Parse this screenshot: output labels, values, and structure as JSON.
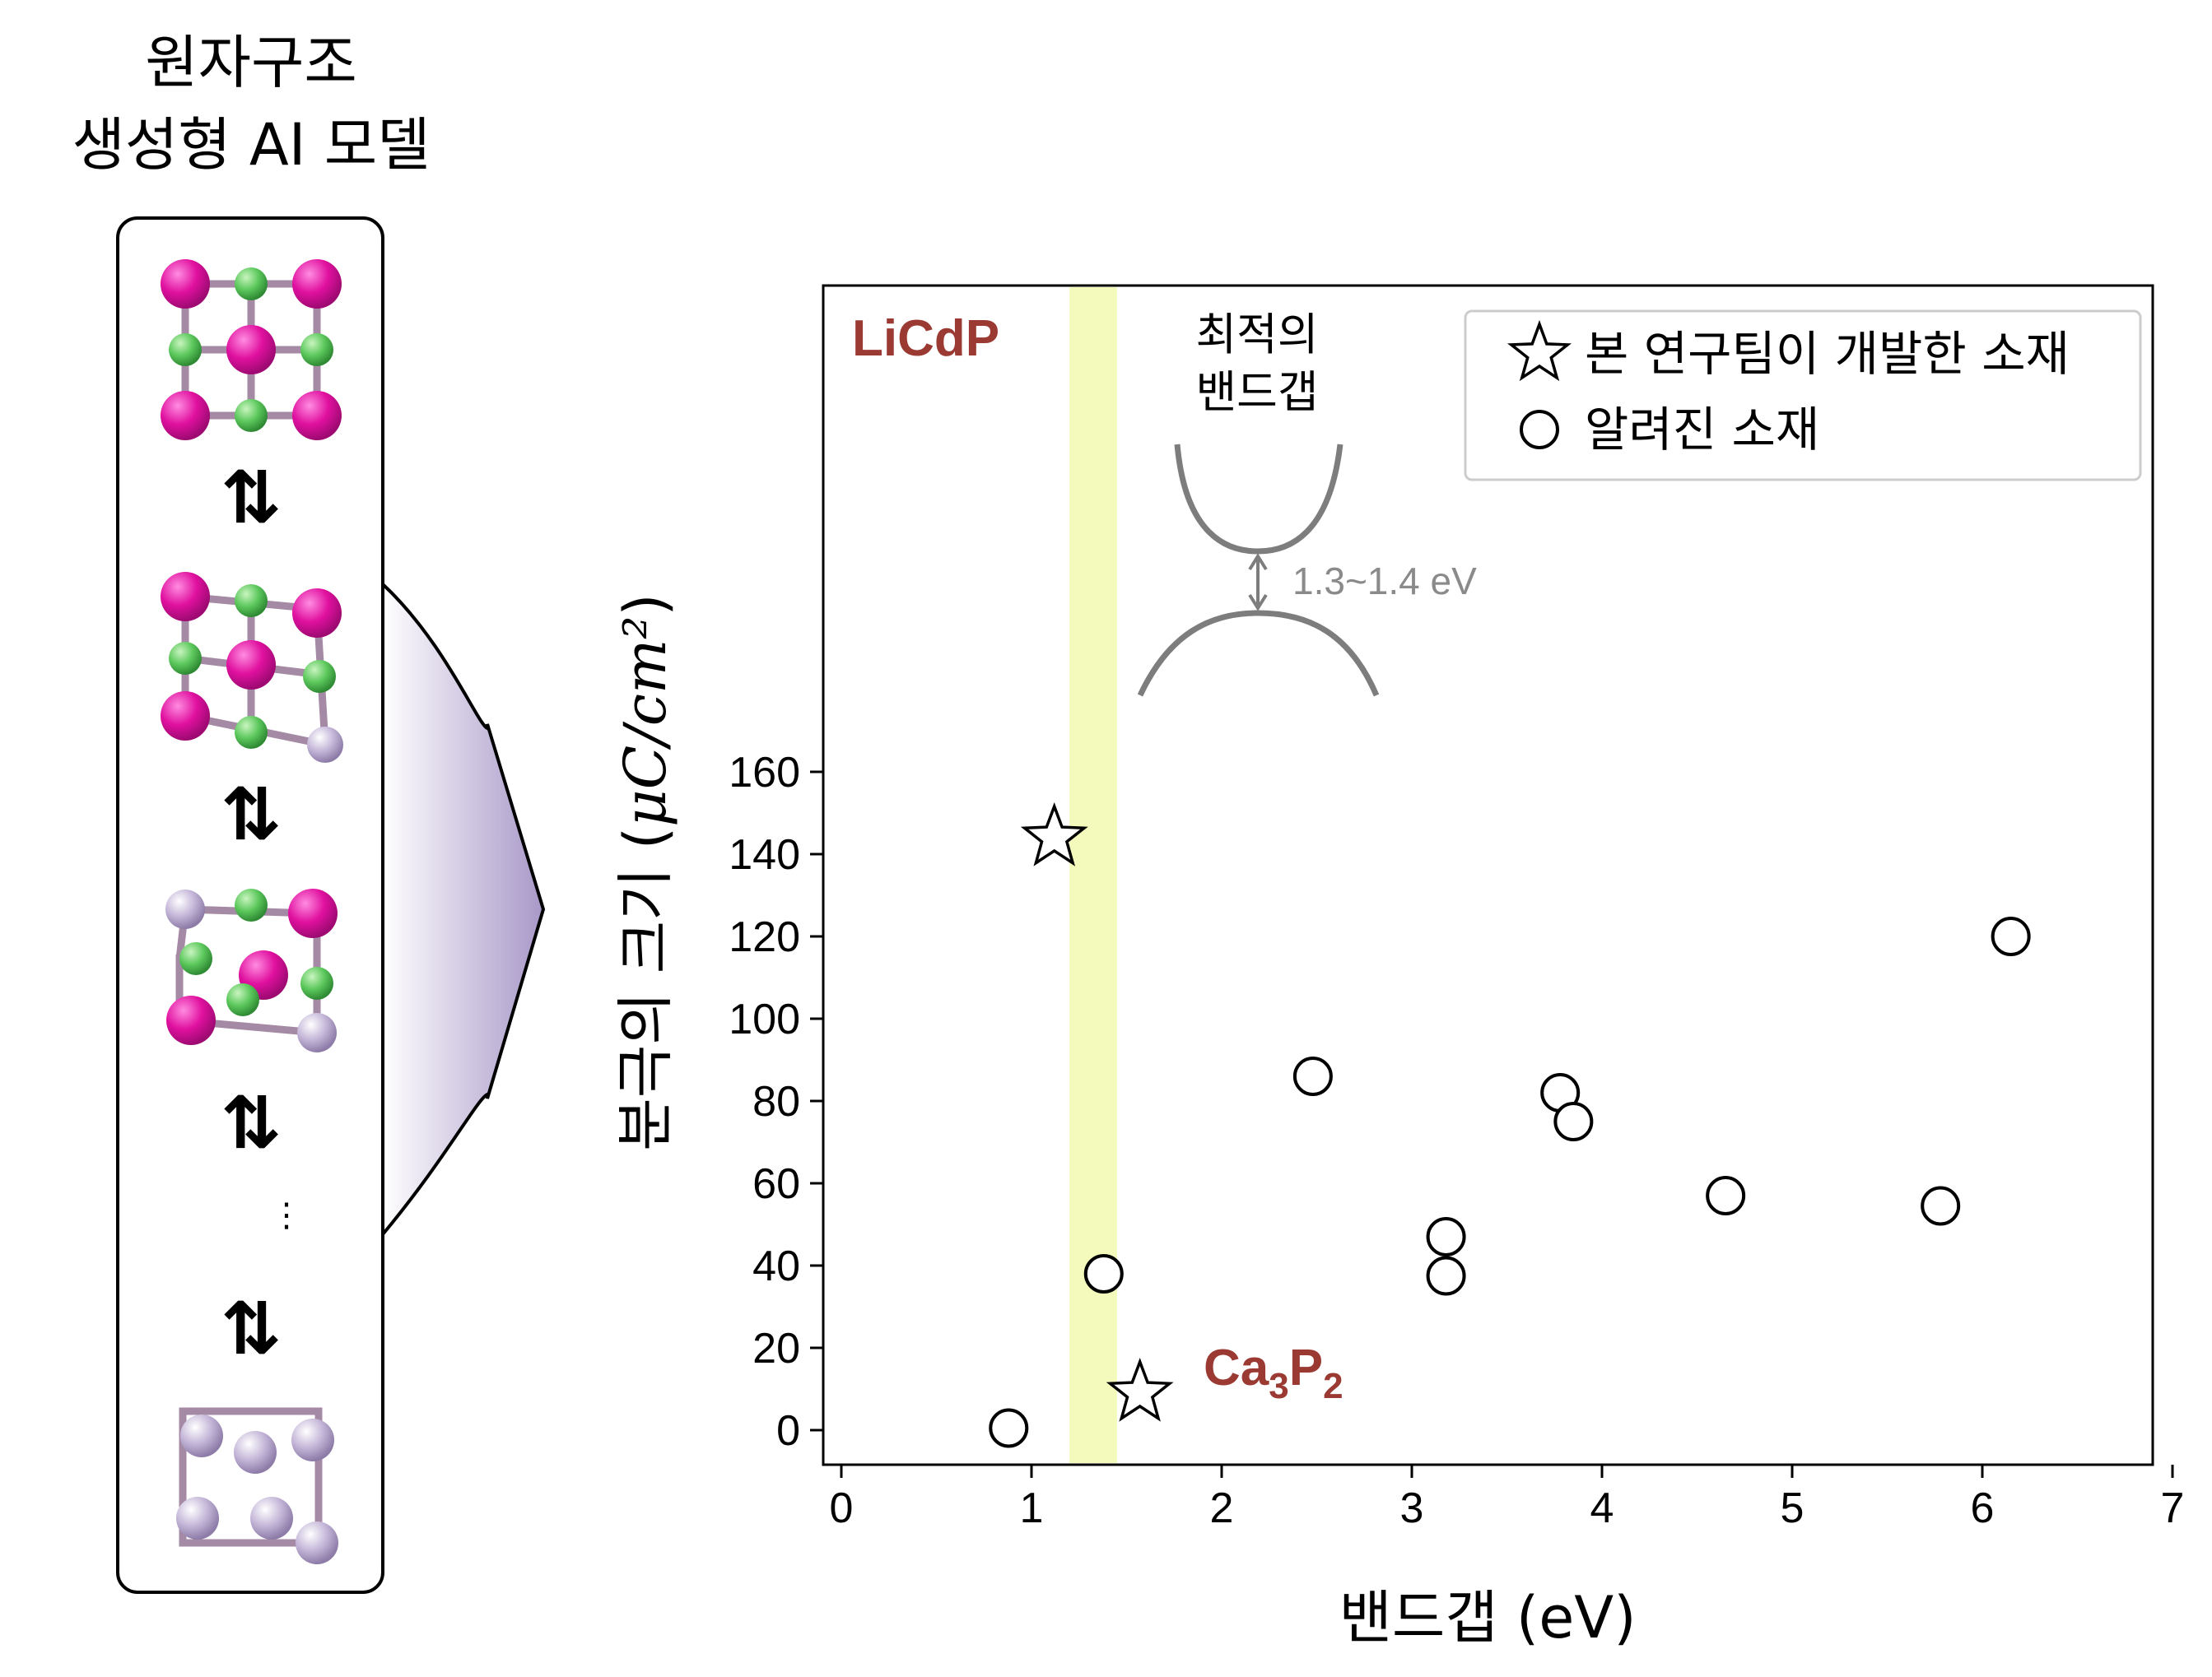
{
  "left_panel": {
    "title_line1": "원자구조",
    "title_line2": "생성형 AI 모델",
    "equilibrium_symbol": "⇅",
    "ellipsis": "⋮",
    "colors": {
      "magenta_atom": "#e0109f",
      "green_atom": "#5cc85c",
      "lavender_atom": "#b9a9cf",
      "bond": "#a58aa5"
    }
  },
  "annotation": {
    "optimal_line1": "최적의",
    "optimal_line2": "밴드갭",
    "gap_value": "1.3~1.4 eV",
    "optimal_band": [
      1.2,
      1.45
    ],
    "band_color": "#f3f8b5"
  },
  "chart_data": {
    "type": "scatter",
    "xlabel": "밴드갭 (eV)",
    "ylabel_text": "분극의 크기 (",
    "ylabel_unit": "μC/cm²",
    "ylabel_close": ")",
    "xlim": [
      0,
      7
    ],
    "ylim": [
      0,
      160
    ],
    "xticks": [
      "0",
      "1",
      "2",
      "3",
      "4",
      "5",
      "6",
      "7"
    ],
    "yticks": [
      "0",
      "20",
      "40",
      "60",
      "80",
      "100",
      "120",
      "140",
      "160"
    ],
    "legend_position": "top-right",
    "grid": false,
    "series": [
      {
        "name": "본 연구팀이 개발한 소재",
        "marker": "star",
        "points": [
          {
            "x": 1.12,
            "y": 144,
            "label": "LiCdP"
          },
          {
            "x": 1.57,
            "y": 9,
            "label": "Ca3P2"
          }
        ]
      },
      {
        "name": "알려진 소재",
        "marker": "circle",
        "points": [
          {
            "x": 0.88,
            "y": 0.5
          },
          {
            "x": 1.38,
            "y": 38
          },
          {
            "x": 2.48,
            "y": 86
          },
          {
            "x": 3.18,
            "y": 47
          },
          {
            "x": 3.18,
            "y": 37.5
          },
          {
            "x": 3.78,
            "y": 82
          },
          {
            "x": 3.85,
            "y": 75
          },
          {
            "x": 4.65,
            "y": 57
          },
          {
            "x": 5.78,
            "y": 54.5
          },
          {
            "x": 6.15,
            "y": 120
          }
        ]
      }
    ]
  }
}
